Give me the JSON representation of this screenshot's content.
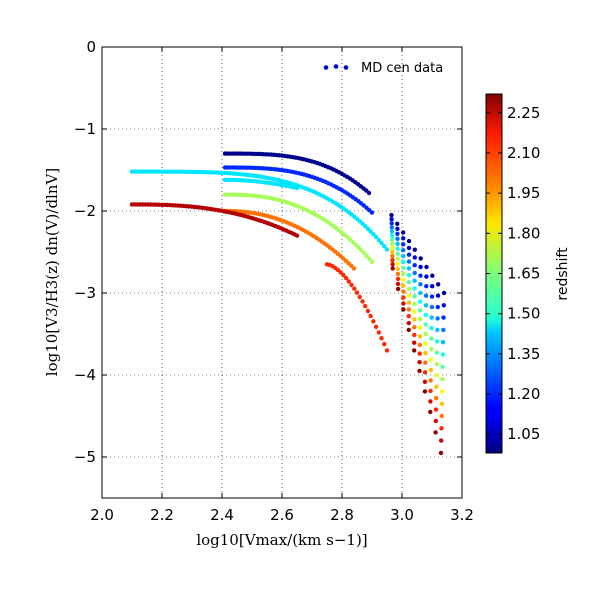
{
  "chart_data": {
    "type": "scatter",
    "xlabel": "log10[Vmax/(km s−1)]",
    "ylabel": "log10[V3/H3(z) dn(V)/dlnV]",
    "xlim": [
      2.0,
      3.2
    ],
    "ylim": [
      -5.5,
      0
    ],
    "x_ticks": [
      "2.0",
      "2.2",
      "2.4",
      "2.6",
      "2.8",
      "3.0",
      "3.2"
    ],
    "y_ticks": [
      "0",
      "−1",
      "−2",
      "−3",
      "−4",
      "−5"
    ],
    "grid": true,
    "legend": {
      "label": "MD cen data",
      "position": "top-right"
    },
    "colorbar": {
      "label": "redshift",
      "colormap": "jet",
      "range": [
        0.98,
        2.32
      ],
      "ticks": [
        "1.05",
        "1.20",
        "1.35",
        "1.50",
        "1.65",
        "1.80",
        "1.95",
        "2.10",
        "2.25"
      ]
    },
    "curves": [
      {
        "redshift": 1.0,
        "x_start": 2.41,
        "x_end": 2.89,
        "y_start": -1.3,
        "y_drop": 0.48,
        "power": 3.2
      },
      {
        "redshift": 1.2,
        "x_start": 2.41,
        "x_end": 2.9,
        "y_start": -1.47,
        "y_drop": 0.55,
        "power": 3.0
      },
      {
        "redshift": 1.45,
        "x_start": 2.1,
        "x_end": 2.95,
        "y_start": -1.52,
        "y_drop": 0.95,
        "power": 4.0
      },
      {
        "redshift": 1.45,
        "x_start": 2.41,
        "x_end": 2.65,
        "y_start": -1.62,
        "y_drop": 0.1,
        "power": 2.0
      },
      {
        "redshift": 1.7,
        "x_start": 2.41,
        "x_end": 2.9,
        "y_start": -1.8,
        "y_drop": 0.82,
        "power": 2.5
      },
      {
        "redshift": 2.0,
        "x_start": 2.41,
        "x_end": 2.84,
        "y_start": -2.0,
        "y_drop": 0.7,
        "power": 2.2
      },
      {
        "redshift": 2.1,
        "x_start": 2.75,
        "x_end": 2.95,
        "y_start": -2.65,
        "y_drop": 1.05,
        "power": 1.6
      },
      {
        "redshift": 2.25,
        "x_start": 2.1,
        "x_end": 2.65,
        "y_start": -1.92,
        "y_drop": 0.38,
        "power": 2.6
      }
    ],
    "ladder": {
      "x_range": [
        2.965,
        3.14
      ],
      "upper_edge_y": [
        -2.05,
        -3.0
      ],
      "lower_edge_y": [
        -2.7,
        -4.95
      ],
      "redshift_range": [
        1.0,
        2.3
      ]
    }
  }
}
